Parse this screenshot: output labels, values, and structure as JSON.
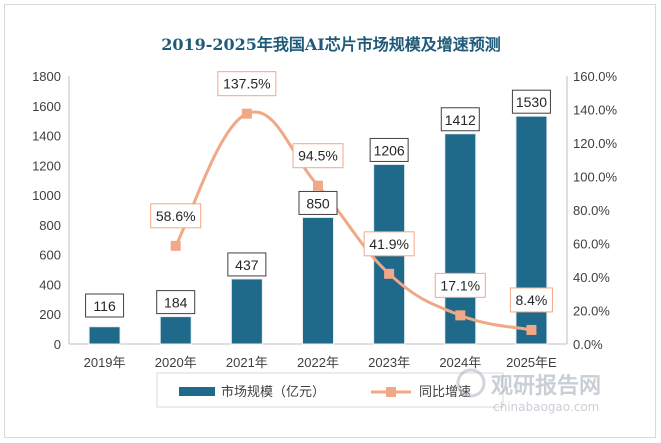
{
  "chart_data": {
    "type": "bar",
    "title": "2019-2025年我国AI芯片市场规模及增速预测",
    "categories": [
      "2019年",
      "2020年",
      "2021年",
      "2022年",
      "2023年",
      "2024年",
      "2025年E"
    ],
    "series": [
      {
        "name": "市场规模（亿元）",
        "kind": "bar",
        "axis": "left",
        "values": [
          116,
          184,
          437,
          850,
          1206,
          1412,
          1530
        ]
      },
      {
        "name": "同比增速",
        "kind": "line",
        "axis": "right",
        "values": [
          null,
          58.6,
          137.5,
          94.5,
          41.9,
          17.1,
          8.4
        ]
      }
    ],
    "bar_labels": [
      "116",
      "184",
      "437",
      "850",
      "1206",
      "1412",
      "1530"
    ],
    "line_labels": [
      "",
      "58.6%",
      "137.5%",
      "94.5%",
      "41.9%",
      "17.1%",
      "8.4%"
    ],
    "y_left": {
      "min": 0,
      "max": 1800,
      "ticks": [
        "0",
        "200",
        "400",
        "600",
        "800",
        "1000",
        "1200",
        "1400",
        "1600",
        "1800"
      ]
    },
    "y_right": {
      "min": 0,
      "max": 160,
      "ticks": [
        "0.0%",
        "20.0%",
        "40.0%",
        "60.0%",
        "80.0%",
        "100.0%",
        "120.0%",
        "140.0%",
        "160.0%"
      ]
    },
    "grid": false,
    "legend_position": "bottom",
    "colors": {
      "bar": "#1f6a8a",
      "line": "#f0a887",
      "title": "#1f5a78",
      "label_border": "#f0a887"
    }
  },
  "watermark": {
    "brand": "观研报告网",
    "url": "chinabaogao.com"
  }
}
